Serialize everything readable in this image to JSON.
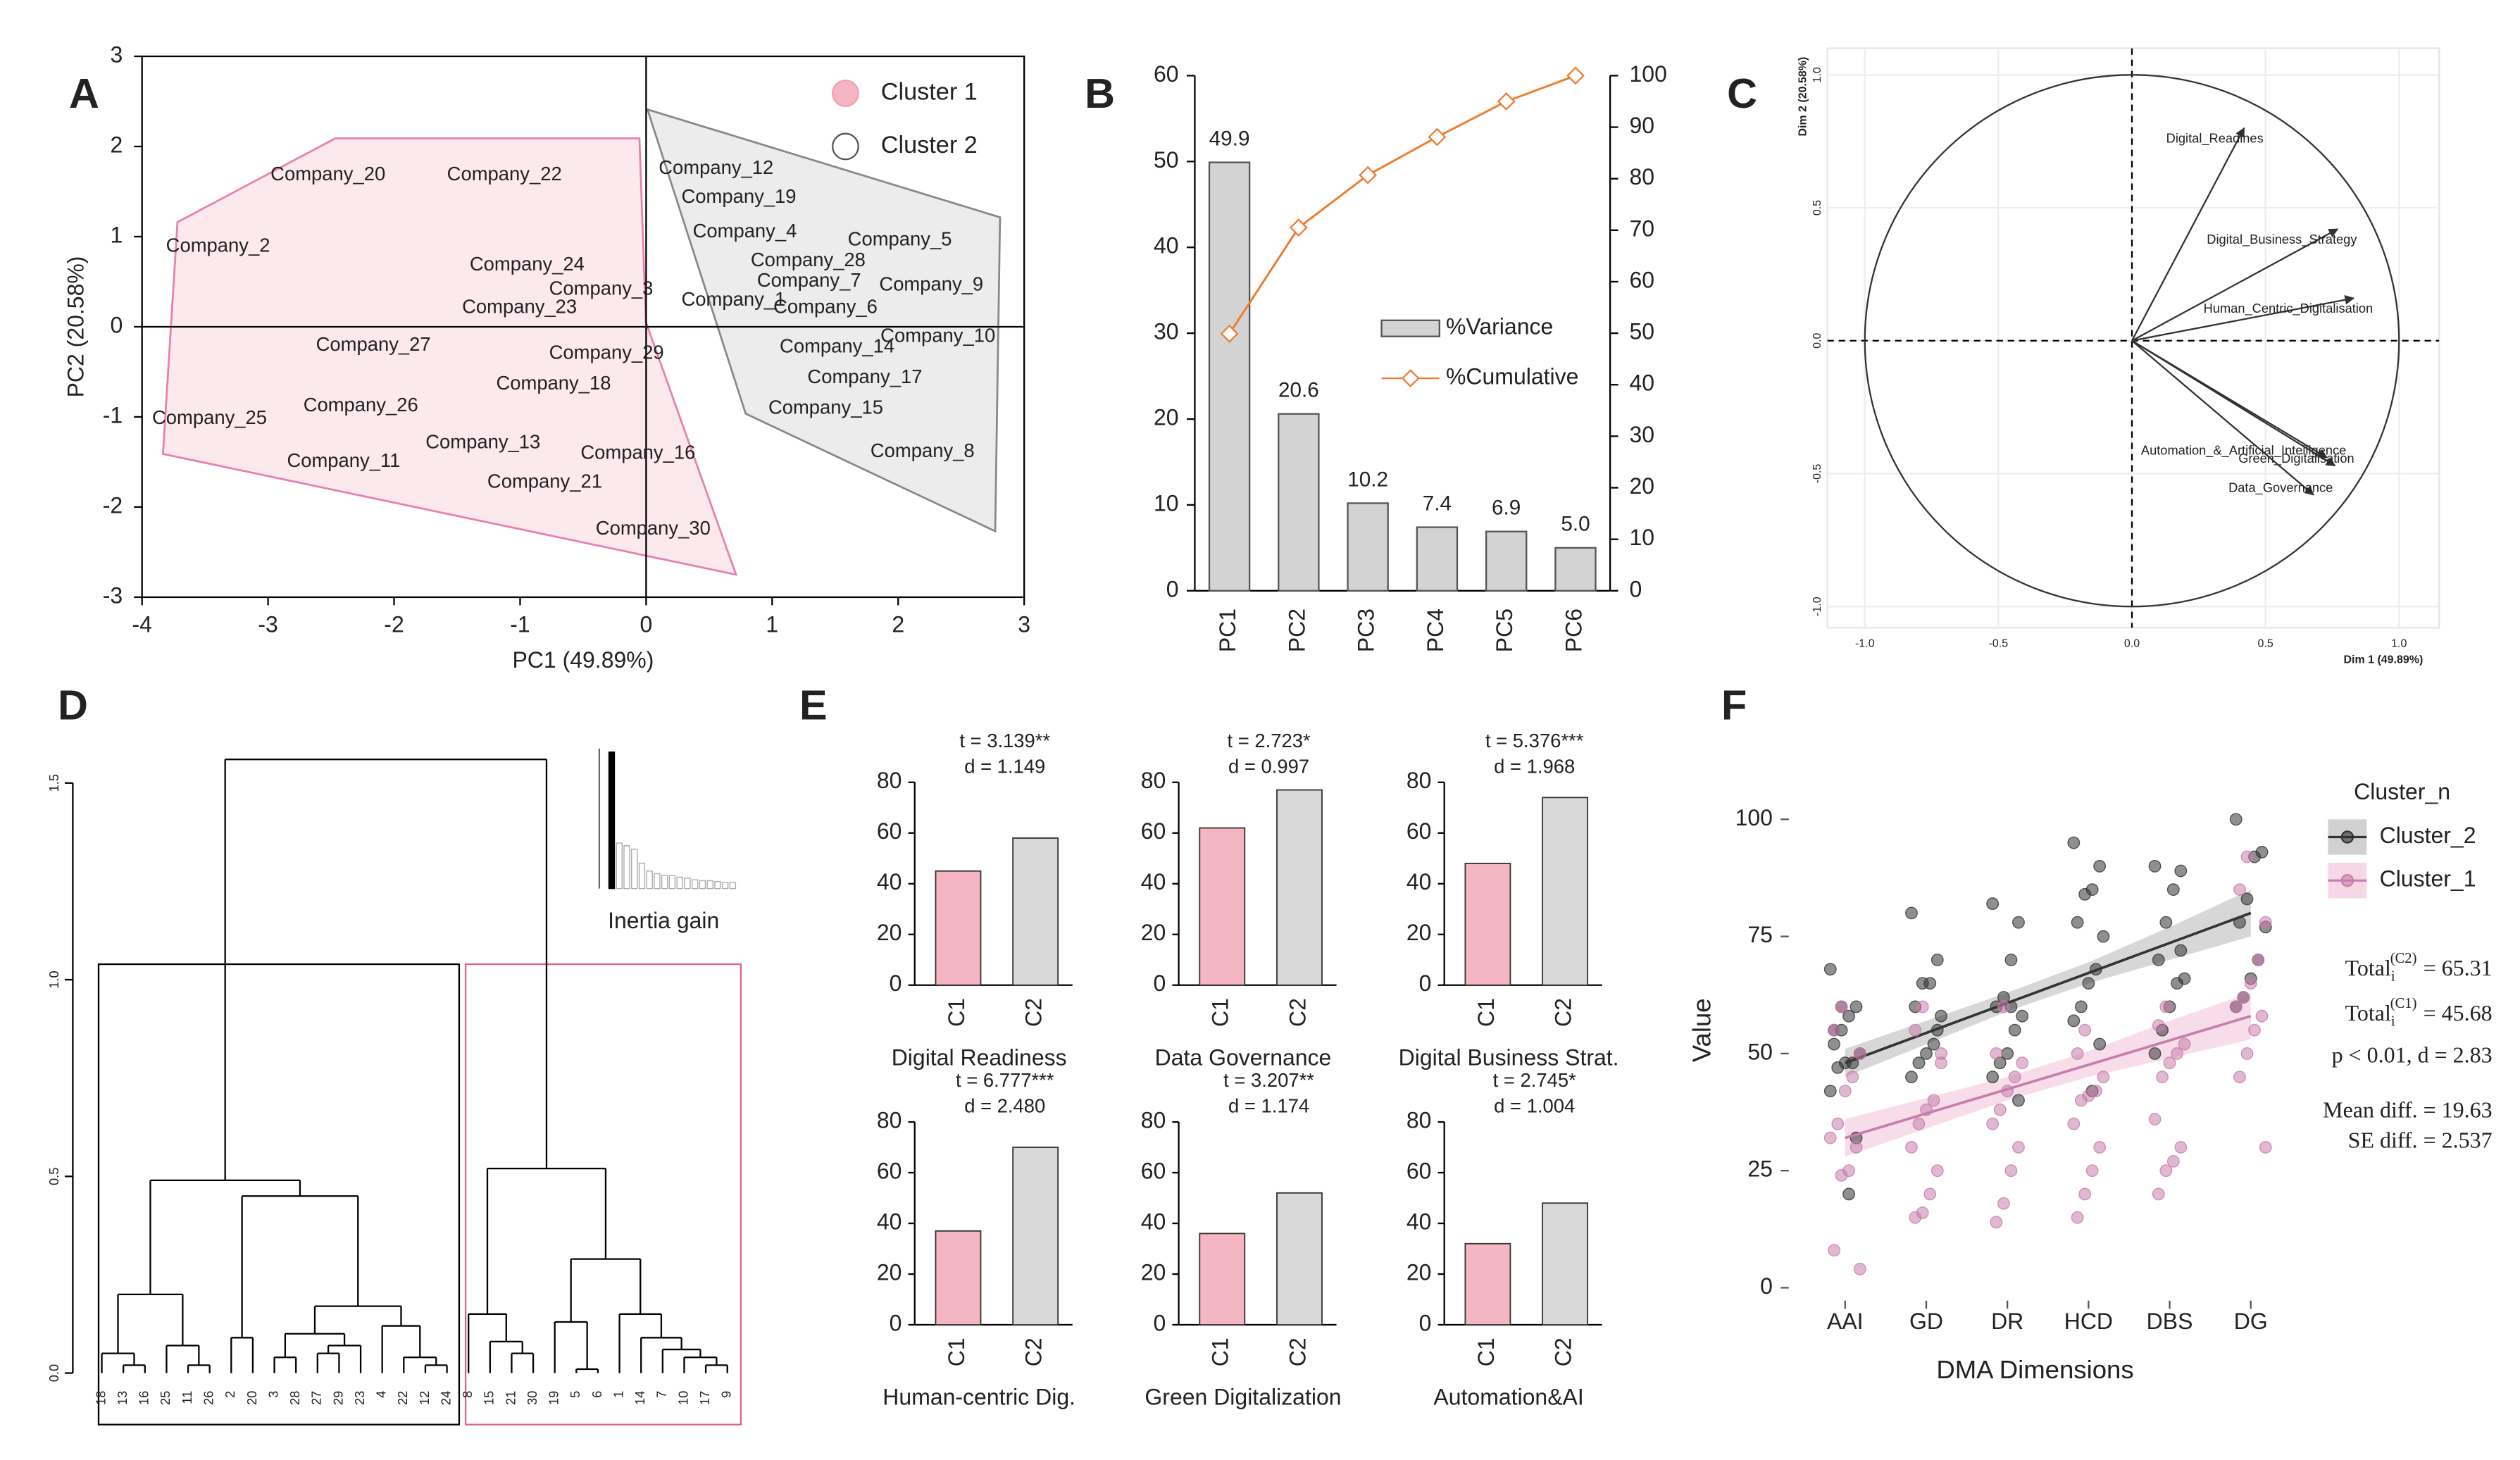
{
  "chart_data": [
    {
      "type": "scatter",
      "panel": "A",
      "xlabel": "PC1 (49.89%)",
      "ylabel": "PC2 (20.58%)",
      "xlim": [
        -4,
        3
      ],
      "ylim": [
        -3,
        3
      ],
      "xticks": [
        -4,
        -3,
        -2,
        -1,
        0,
        1,
        2,
        3
      ],
      "yticks": [
        -3,
        -2,
        -1,
        0,
        1,
        2,
        3
      ],
      "legend": "upper right",
      "series": [
        {
          "name": "Cluster 1",
          "color": "#f4b6c2",
          "labels": [
            "Company_20",
            "Company_22",
            "Company_2",
            "Company_24",
            "Company_3",
            "Company_23",
            "Company_27",
            "Company_29",
            "Company_18",
            "Company_26",
            "Company_25",
            "Company_13",
            "Company_11",
            "Company_16",
            "Company_21",
            "Company_30"
          ],
          "x": [
            -2.98,
            -1.58,
            -3.81,
            -1.4,
            -0.77,
            -1.46,
            -2.62,
            -0.77,
            -1.19,
            -2.72,
            -3.92,
            -1.75,
            -2.85,
            -0.52,
            -1.26,
            -0.4
          ],
          "values": [
            1.68,
            1.68,
            0.89,
            0.68,
            0.41,
            0.21,
            -0.21,
            -0.3,
            -0.64,
            -0.88,
            -1.02,
            -1.29,
            -1.5,
            -1.41,
            -1.73,
            -2.25
          ]
        },
        {
          "name": "Cluster 2",
          "color": "#ffffff",
          "labels": [
            "Company_12",
            "Company_19",
            "Company_4",
            "Company_5",
            "Company_28",
            "Company_7",
            "Company_9",
            "Company_1",
            "Company_6",
            "Company_10",
            "Company_14",
            "Company_17",
            "Company_15",
            "Company_8"
          ],
          "x": [
            0.1,
            0.28,
            0.37,
            1.6,
            0.83,
            0.88,
            1.85,
            0.28,
            1.01,
            1.86,
            1.06,
            1.28,
            0.97,
            1.78
          ],
          "values": [
            1.75,
            1.43,
            1.05,
            0.96,
            0.73,
            0.5,
            0.46,
            0.29,
            0.21,
            -0.11,
            -0.23,
            -0.57,
            -0.91,
            -1.39
          ]
        }
      ]
    },
    {
      "type": "bar_line",
      "panel": "B",
      "categories": [
        "PC1",
        "PC2",
        "PC3",
        "PC4",
        "PC5",
        "PC6"
      ],
      "series": [
        {
          "name": "%Variance",
          "color": "#d3d3d3",
          "values": [
            49.9,
            20.6,
            10.2,
            7.4,
            6.9,
            5.0
          ],
          "value_labels": [
            "49.9",
            "20.6",
            "10.2",
            "7.4",
            "6.9",
            "5.0"
          ]
        },
        {
          "name": "%Cumulative",
          "color": "#ed7d31",
          "axis": "y2",
          "values": [
            49.9,
            70.5,
            80.7,
            88.1,
            95.0,
            100
          ]
        }
      ],
      "ylim": [
        0,
        60
      ],
      "yticks": [
        0,
        10,
        20,
        30,
        40,
        50,
        60
      ],
      "y2lim": [
        0,
        100
      ],
      "y2ticks": [
        0,
        10,
        20,
        30,
        40,
        50,
        60,
        70,
        80,
        90,
        100
      ]
    },
    {
      "type": "vector",
      "panel": "C",
      "xlabel": "Dim 1 (49.89%)",
      "ylabel": "Dim 2 (20.58%)",
      "xlim": [
        -1.14,
        1.15
      ],
      "ylim": [
        -1.08,
        1.1
      ],
      "xticks": [
        {
          "value": -1,
          "label": "-1.0"
        },
        {
          "value": -0.5,
          "label": "-0.5"
        },
        {
          "value": 0,
          "label": "0.0"
        },
        {
          "value": 0.5,
          "label": "0.5"
        },
        {
          "value": 1,
          "label": "1.0"
        }
      ],
      "yticks": [
        {
          "value": -1,
          "label": "-1.0"
        },
        {
          "value": -0.5,
          "label": "-0.5"
        },
        {
          "value": 0,
          "label": "0.0"
        },
        {
          "value": 0.5,
          "label": "0.5"
        },
        {
          "value": 1,
          "label": "1.0"
        }
      ],
      "grid": true,
      "color": "#333333",
      "labels": [
        "Digital_Readines",
        "Digital_Business_Strategy",
        "Human_Centric_Digitalisation",
        "Automation_&_Artificial_Intelligence",
        "Green_Digitalisation",
        "Data_Governance"
      ],
      "x": [
        0.42,
        0.77,
        0.83,
        0.73,
        0.76,
        0.68
      ],
      "values": [
        0.8,
        0.42,
        0.16,
        -0.44,
        -0.47,
        -0.58
      ]
    },
    {
      "type": "dendrogram",
      "panel": "D",
      "ylim": [
        0,
        1.6
      ],
      "yticks": [
        {
          "value": 0,
          "label": "0.0"
        },
        {
          "value": 0.5,
          "label": "0.5"
        },
        {
          "value": 1,
          "label": "1.0"
        },
        {
          "value": 1.5,
          "label": "1.5"
        }
      ],
      "tree": {
        "height": 1.56,
        "children": [
          {
            "height": 0.49,
            "children": [
              {
                "height": 0.2,
                "children": [
                  {
                    "height": 0.05,
                    "children": [
                      "18",
                      {
                        "height": 0.02,
                        "children": [
                          "13",
                          "16"
                        ]
                      }
                    ]
                  },
                  {
                    "height": 0.07,
                    "children": [
                      "25",
                      {
                        "height": 0.02,
                        "children": [
                          "11",
                          "26"
                        ]
                      }
                    ]
                  }
                ]
              },
              {
                "height": 0.45,
                "children": [
                  {
                    "height": 0.09,
                    "children": [
                      "2",
                      "20"
                    ]
                  },
                  {
                    "height": 0.17,
                    "children": [
                      {
                        "height": 0.1,
                        "children": [
                          {
                            "height": 0.04,
                            "children": [
                              "3",
                              "28"
                            ]
                          },
                          {
                            "height": 0.07,
                            "children": [
                              {
                                "height": 0.05,
                                "children": [
                                  "27",
                                  "29"
                                ]
                              },
                              "23"
                            ]
                          }
                        ]
                      },
                      {
                        "height": 0.12,
                        "children": [
                          "4",
                          {
                            "height": 0.04,
                            "children": [
                              "22",
                              {
                                "height": 0.02,
                                "children": [
                                  "12",
                                  "24"
                                ]
                              }
                            ]
                          }
                        ]
                      }
                    ]
                  }
                ]
              }
            ]
          },
          {
            "height": 0.52,
            "children": [
              {
                "height": 0.15,
                "children": [
                  "8",
                  {
                    "height": 0.08,
                    "children": [
                      "15",
                      {
                        "height": 0.05,
                        "children": [
                          "21",
                          "30"
                        ]
                      }
                    ]
                  }
                ]
              },
              {
                "height": 0.29,
                "children": [
                  {
                    "height": 0.13,
                    "children": [
                      "19",
                      {
                        "height": 0.01,
                        "children": [
                          "5",
                          "6"
                        ]
                      }
                    ]
                  },
                  {
                    "height": 0.15,
                    "children": [
                      "1",
                      {
                        "height": 0.09,
                        "children": [
                          "14",
                          {
                            "height": 0.06,
                            "children": [
                              "7",
                              {
                                "height": 0.04,
                                "children": [
                                  "10",
                                  {
                                    "height": 0.02,
                                    "children": [
                                      "17",
                                      "9"
                                    ]
                                  }
                                ]
                              }
                            ]
                          }
                        ]
                      }
                    ]
                  }
                ]
              }
            ]
          }
        ]
      },
      "inset": {
        "title": "Inertia gain",
        "ylim": [
          0,
          1.6
        ],
        "colors": [
          "#000000",
          "#aaaaaa"
        ],
        "values": [
          1.56,
          0.52,
          0.49,
          0.45,
          0.29,
          0.2,
          0.17,
          0.15,
          0.15,
          0.13,
          0.12,
          0.1,
          0.09,
          0.09,
          0.08,
          0.07,
          0.07
        ]
      }
    },
    {
      "type": "bar_grid",
      "panel": "E",
      "categories": [
        "C1",
        "C2"
      ],
      "colors": [
        "#f4b6c2",
        "#d9d9d9"
      ],
      "ylim": [
        0,
        80
      ],
      "yticks": [
        0,
        20,
        40,
        60,
        80
      ],
      "panels": [
        {
          "title": "Digital Readiness",
          "t": "t = 3.139**",
          "d": "d = 1.149",
          "values": [
            45,
            58
          ]
        },
        {
          "title": "Data Governance",
          "t": "t = 2.723*",
          "d": "d = 0.997",
          "values": [
            62,
            77
          ]
        },
        {
          "title": "Digital Business Strat.",
          "t": "t = 5.376***",
          "d": "d = 1.968",
          "values": [
            48,
            74
          ]
        },
        {
          "title": "Human-centric Dig.",
          "t": "t = 6.777***",
          "d": "d = 2.480",
          "values": [
            37,
            70
          ]
        },
        {
          "title": "Green Digitalization",
          "t": "t = 3.207**",
          "d": "d = 1.174",
          "values": [
            36,
            52
          ]
        },
        {
          "title": "Automation&AI",
          "t": "t = 2.745*",
          "d": "d = 1.004",
          "values": [
            32,
            48
          ]
        }
      ]
    },
    {
      "type": "strip_fit",
      "panel": "F",
      "xlabel": "DMA Dimensions",
      "ylabel": "Value",
      "legend_title": "Cluster_n",
      "categories": [
        "AAI",
        "GD",
        "DR",
        "HCD",
        "DBS",
        "DG"
      ],
      "ylim": [
        0,
        100
      ],
      "yticks": [
        0,
        25,
        50,
        75,
        100
      ],
      "series": [
        {
          "name": "Cluster_2",
          "color": "#333333",
          "band_color": "#bdbdbd",
          "values": [
            [
              68,
              60,
              58,
              55,
              52,
              50,
              48,
              48,
              47,
              42,
              32,
              20,
              60,
              55
            ],
            [
              80,
              70,
              65,
              65,
              60,
              58,
              52,
              50,
              48,
              45,
              55
            ],
            [
              82,
              78,
              70,
              62,
              60,
              58,
              55,
              50,
              48,
              45,
              40,
              60
            ],
            [
              95,
              90,
              85,
              84,
              78,
              75,
              68,
              65,
              60,
              57,
              52,
              42
            ],
            [
              90,
              89,
              85,
              78,
              70,
              66,
              65,
              60,
              55,
              50,
              72
            ],
            [
              100,
              93,
              92,
              83,
              78,
              77,
              70,
              66,
              62,
              60
            ]
          ],
          "fit": [
            48,
            54.4,
            60.8,
            67.2,
            73.6,
            80
          ],
          "fit_lower": [
            45,
            52,
            59,
            65,
            70,
            75
          ],
          "fit_upper": [
            51,
            57,
            63,
            69.5,
            77,
            85
          ]
        },
        {
          "name": "Cluster_1",
          "color": "#c77dab",
          "band_color": "#f2c6dc",
          "values": [
            [
              60,
              55,
              50,
              45,
              42,
              35,
              32,
              30,
              25,
              24,
              8,
              4
            ],
            [
              60,
              55,
              50,
              40,
              38,
              35,
              30,
              25,
              20,
              16,
              15,
              48
            ],
            [
              60,
              50,
              48,
              45,
              42,
              38,
              35,
              30,
              25,
              18,
              14
            ],
            [
              55,
              50,
              45,
              42,
              41,
              40,
              35,
              30,
              25,
              20,
              15
            ],
            [
              60,
              56,
              52,
              50,
              48,
              45,
              36,
              30,
              27,
              25,
              20
            ],
            [
              92,
              85,
              78,
              70,
              65,
              62,
              60,
              58,
              55,
              50,
              45,
              30
            ]
          ],
          "fit": [
            32,
            37.2,
            42.4,
            47.6,
            52.8,
            58
          ],
          "fit_lower": [
            28,
            34,
            40,
            45,
            49,
            53
          ],
          "fit_upper": [
            36,
            40.5,
            45,
            50.5,
            57,
            63
          ]
        }
      ],
      "annotations": [
        {
          "base": "Total",
          "sub": "i",
          "sup": "(C2)",
          "text": "= 65.31"
        },
        {
          "base": "Total",
          "sub": "i",
          "sup": "(C1)",
          "text": "= 45.68"
        },
        {
          "text": "p < 0.01, d = 2.83"
        },
        {
          "text": "Mean diff. = 19.63"
        },
        {
          "text": "SE diff. = 2.537"
        }
      ]
    }
  ]
}
